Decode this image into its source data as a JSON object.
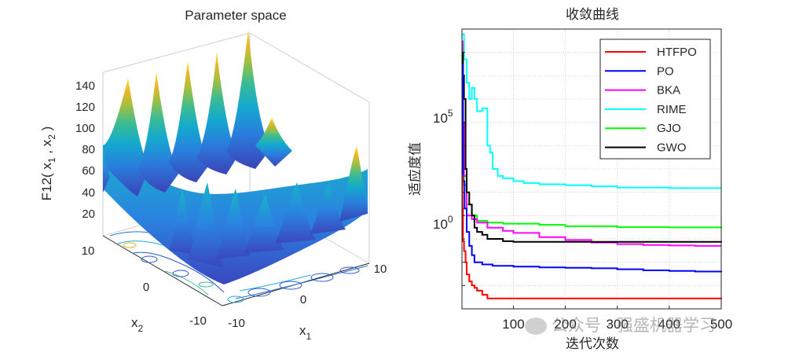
{
  "charts": {
    "surface": {
      "title": "Parameter space",
      "zlabel": "F12( x",
      "zlabel_sub1": "1",
      "zlabel_mid": " , x",
      "zlabel_sub2": "2",
      "zlabel_end": " )",
      "xlabel": "x",
      "xlabel_sub": "1",
      "ylabel": "x",
      "ylabel_sub": "2",
      "ztick_labels": [
        "20",
        "40",
        "60",
        "80",
        "100",
        "120",
        "140"
      ],
      "x1_tick_labels": [
        "-10",
        "0",
        "10"
      ],
      "x2_tick_labels": [
        "-10",
        "0",
        "10"
      ]
    },
    "convergence": {
      "title": "收敛曲线",
      "xlabel": "迭代次数",
      "ylabel": "适应度值",
      "xtick_labels": [
        "100",
        "200",
        "300",
        "400",
        "500"
      ],
      "ytick_labels": [
        {
          "base": "10",
          "exp": "5"
        },
        {
          "base": "10",
          "exp": "0"
        }
      ]
    }
  },
  "chart_data": [
    {
      "type": "surface",
      "title": "Parameter space",
      "zlabel": "F12( x1 , x2 )",
      "xlabel": "x1",
      "ylabel": "x2",
      "xlim": [
        -10,
        10
      ],
      "ylim": [
        -10,
        10
      ],
      "zlim": [
        0,
        150
      ],
      "colormap": "parula",
      "contour_on_floor": true,
      "approx_peaks": [
        {
          "x1": -10,
          "x2": 10,
          "z": 120
        },
        {
          "x1": -6,
          "x2": 10,
          "z": 135
        },
        {
          "x1": -2,
          "x2": 10,
          "z": 140
        },
        {
          "x1": 2,
          "x2": 10,
          "z": 143
        },
        {
          "x1": 6,
          "x2": 10,
          "z": 148
        },
        {
          "x1": 10,
          "x2": 2,
          "z": 70
        },
        {
          "x1": 2,
          "x2": -4,
          "z": 55
        },
        {
          "x1": -2,
          "x2": -6,
          "z": 50
        }
      ]
    },
    {
      "type": "line",
      "title": "收敛曲线",
      "xlabel": "迭代次数",
      "ylabel": "适应度值",
      "xlim": [
        1,
        500
      ],
      "yscale": "log",
      "ylim": [
        0.0001,
        100000000.0
      ],
      "grid": true,
      "legend": "top-right",
      "series": [
        {
          "name": "HTFPO",
          "color": "#ff0000",
          "x": [
            1,
            2,
            3,
            5,
            8,
            10,
            15,
            20,
            25,
            30,
            40,
            50,
            500
          ],
          "y": [
            50,
            2,
            0.08,
            0.03,
            0.01,
            0.003,
            0.0015,
            0.001,
            0.0008,
            0.0006,
            0.0004,
            0.00028,
            0.00027
          ]
        },
        {
          "name": "PO",
          "color": "#0000ff",
          "x": [
            1,
            3,
            6,
            10,
            15,
            20,
            25,
            40,
            60,
            100,
            150,
            200,
            250,
            300,
            350,
            400,
            450,
            500
          ],
          "y": [
            3000000.0,
            30,
            2,
            0.2,
            0.05,
            0.02,
            0.01,
            0.008,
            0.007,
            0.0065,
            0.006,
            0.0058,
            0.0055,
            0.005,
            0.0045,
            0.0042,
            0.004,
            0.0037
          ]
        },
        {
          "name": "BKA",
          "color": "#ff00ff",
          "x": [
            1,
            2,
            3,
            5,
            10,
            20,
            30,
            50,
            80,
            100,
            150,
            200,
            250,
            300,
            350,
            400,
            450,
            500
          ],
          "y": [
            30000000.0,
            1000000.0,
            10000.0,
            50,
            1,
            0.7,
            0.5,
            0.3,
            0.22,
            0.18,
            0.12,
            0.09,
            0.07,
            0.06,
            0.055,
            0.052,
            0.05,
            0.05
          ]
        },
        {
          "name": "RIME",
          "color": "#00ffff",
          "x": [
            1,
            5,
            10,
            15,
            20,
            25,
            30,
            40,
            50,
            55,
            60,
            70,
            80,
            100,
            120,
            150,
            200,
            250,
            300,
            400,
            500
          ],
          "y": [
            60000000.0,
            5000000.0,
            500000.0,
            100000.0,
            300000.0,
            100000.0,
            30000.0,
            40000.0,
            1000,
            500,
            100,
            50,
            40,
            30,
            25,
            22,
            20,
            18,
            16,
            15,
            15
          ]
        },
        {
          "name": "GJO",
          "color": "#00ff00",
          "x": [
            1,
            3,
            5,
            10,
            20,
            30,
            50,
            80,
            100,
            150,
            200,
            300,
            400,
            500
          ],
          "y": [
            20000000.0,
            100,
            20,
            3,
            1,
            0.6,
            0.5,
            0.45,
            0.45,
            0.4,
            0.35,
            0.32,
            0.31,
            0.3
          ]
        },
        {
          "name": "GWO",
          "color": "#000000",
          "x": [
            1,
            3,
            5,
            8,
            10,
            15,
            20,
            25,
            30,
            40,
            50,
            80,
            100,
            150,
            200,
            500
          ],
          "y": [
            10000000.0,
            1000000.0,
            100000.0,
            100,
            10,
            3,
            1,
            0.3,
            0.2,
            0.15,
            0.1,
            0.08,
            0.075,
            0.075,
            0.075,
            0.07
          ]
        }
      ]
    }
  ],
  "watermark": "公众号 · 强盛机器学习"
}
